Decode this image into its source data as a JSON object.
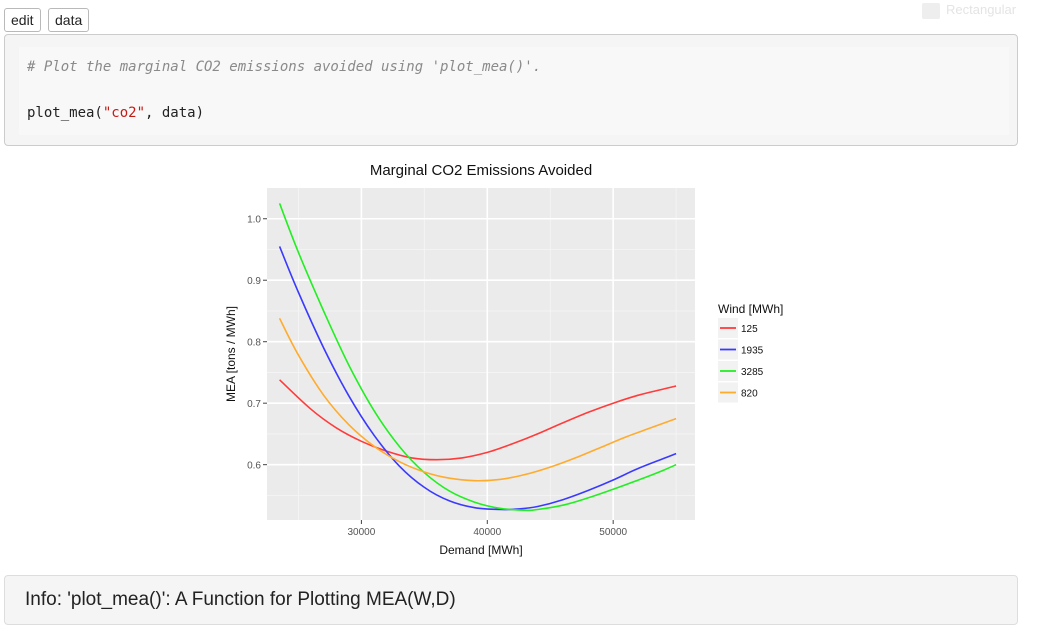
{
  "toolbar": {
    "edit_label": "edit",
    "data_label": "data"
  },
  "watermark": {
    "text": "Rectangular"
  },
  "code": {
    "comment": "# Plot the marginal CO2 emissions avoided using 'plot_mea()'.",
    "call_fn": "plot_mea(",
    "call_arg_string": "\"co2\"",
    "call_rest": ", data)"
  },
  "info": {
    "text": "Info: 'plot_mea()': A Function for Plotting MEA(W,D)"
  },
  "chart_data": {
    "type": "line",
    "title": "Marginal CO2 Emissions Avoided",
    "xlabel": "Demand [MWh]",
    "ylabel": "MEA [tons / MWh]",
    "xlim": [
      22500,
      56500
    ],
    "ylim": [
      0.51,
      1.05
    ],
    "xticks": [
      30000,
      40000,
      50000
    ],
    "yticks": [
      0.6,
      0.7,
      0.8,
      0.9,
      1.0
    ],
    "ytick_labels": [
      "0.6",
      "0.7",
      "0.8",
      "0.9",
      "1.0"
    ],
    "grid": true,
    "legend": {
      "title": "Wind [MWh]",
      "placement": "right"
    },
    "series": [
      {
        "name": "125",
        "color": "#ff3b3b",
        "x": [
          23500,
          26000,
          28000,
          30000,
          32000,
          34000,
          36000,
          38000,
          40000,
          42000,
          44000,
          46000,
          48000,
          50000,
          52000,
          54000,
          55000
        ],
        "y": [
          0.738,
          0.69,
          0.66,
          0.638,
          0.622,
          0.611,
          0.608,
          0.611,
          0.62,
          0.634,
          0.65,
          0.668,
          0.685,
          0.7,
          0.713,
          0.723,
          0.728
        ]
      },
      {
        "name": "1935",
        "color": "#3a3aff",
        "x": [
          23500,
          25000,
          27000,
          29000,
          31000,
          33000,
          35000,
          37000,
          39000,
          41000,
          42500,
          44000,
          46000,
          48000,
          50000,
          52000,
          54000,
          55000
        ],
        "y": [
          0.955,
          0.88,
          0.79,
          0.712,
          0.648,
          0.598,
          0.563,
          0.541,
          0.53,
          0.527,
          0.528,
          0.532,
          0.543,
          0.558,
          0.575,
          0.594,
          0.61,
          0.618
        ]
      },
      {
        "name": "3285",
        "color": "#22ee22",
        "x": [
          23500,
          25000,
          27000,
          29000,
          31000,
          33000,
          35000,
          37000,
          39000,
          41000,
          43000,
          44000,
          46000,
          48000,
          50000,
          52000,
          54000,
          55000
        ],
        "y": [
          1.025,
          0.945,
          0.85,
          0.762,
          0.688,
          0.63,
          0.587,
          0.557,
          0.539,
          0.529,
          0.526,
          0.527,
          0.534,
          0.546,
          0.56,
          0.575,
          0.591,
          0.6
        ]
      },
      {
        "name": "820",
        "color": "#ffab2e",
        "x": [
          23500,
          25000,
          27000,
          29000,
          31000,
          33000,
          35000,
          37000,
          39000,
          41000,
          43000,
          45000,
          47000,
          49000,
          51000,
          53000,
          55000
        ],
        "y": [
          0.838,
          0.778,
          0.713,
          0.665,
          0.63,
          0.605,
          0.588,
          0.578,
          0.574,
          0.576,
          0.584,
          0.596,
          0.611,
          0.628,
          0.645,
          0.66,
          0.675
        ]
      }
    ]
  }
}
